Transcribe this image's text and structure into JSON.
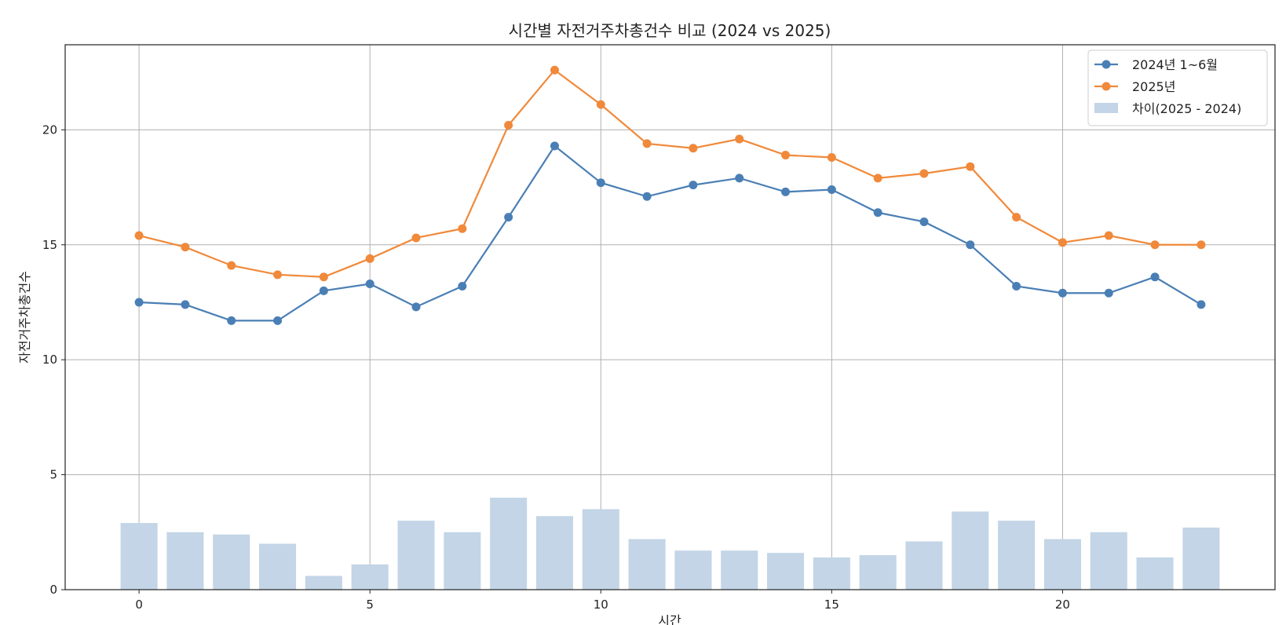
{
  "chart_data": {
    "type": "line",
    "title": "시간별 자전거주차총건수 비교 (2024 vs 2025)",
    "xlabel": "시간",
    "ylabel": "자전거주차총건수",
    "x": [
      0,
      1,
      2,
      3,
      4,
      5,
      6,
      7,
      8,
      9,
      10,
      11,
      12,
      13,
      14,
      15,
      16,
      17,
      18,
      19,
      20,
      21,
      22,
      23
    ],
    "xlim": [
      -1.6,
      24.6
    ],
    "ylim": [
      0,
      23.7
    ],
    "xticks": [
      0,
      5,
      10,
      15,
      20
    ],
    "yticks": [
      0,
      5,
      10,
      15,
      20
    ],
    "grid": true,
    "legend_position": "top-right",
    "series": [
      {
        "name": "2024년 1~6월",
        "kind": "line",
        "color": "#4a7fb5",
        "values": [
          12.5,
          12.4,
          11.7,
          11.7,
          13.0,
          13.3,
          12.3,
          13.2,
          16.2,
          19.3,
          17.7,
          17.1,
          17.6,
          17.9,
          17.3,
          17.4,
          16.4,
          16.0,
          15.0,
          13.2,
          12.9,
          12.9,
          13.6,
          12.4
        ]
      },
      {
        "name": "2025년",
        "kind": "line",
        "color": "#f0893a",
        "values": [
          15.4,
          14.9,
          14.1,
          13.7,
          13.6,
          14.4,
          15.3,
          15.7,
          20.2,
          22.6,
          21.1,
          19.4,
          19.2,
          19.6,
          18.9,
          18.8,
          17.9,
          18.1,
          18.4,
          16.2,
          15.1,
          15.4,
          15.0,
          15.0
        ]
      },
      {
        "name": "차이(2025 - 2024)",
        "kind": "bar",
        "color": "#c3d5e6",
        "values": [
          2.9,
          2.5,
          2.4,
          2.0,
          0.6,
          1.1,
          3.0,
          2.5,
          4.0,
          3.2,
          3.5,
          2.2,
          1.7,
          1.7,
          1.6,
          1.4,
          1.5,
          2.1,
          3.4,
          3.0,
          2.2,
          2.5,
          1.4,
          2.7
        ]
      }
    ]
  }
}
